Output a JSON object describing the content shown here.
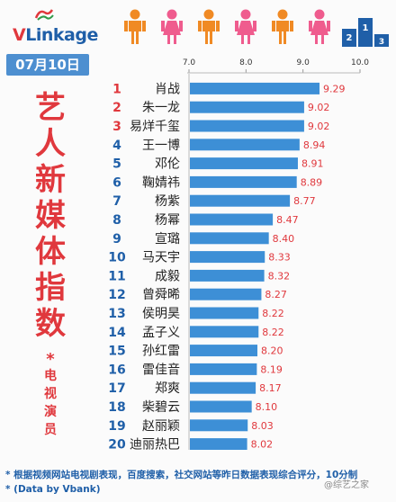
{
  "logo": {
    "text_v": "V",
    "text_link": "Link",
    "text_age": "age"
  },
  "date": "07月10日",
  "side_title": [
    "艺",
    "人",
    "新",
    "媒",
    "体",
    "指",
    "数"
  ],
  "side_star": "*",
  "side_sub": [
    "电",
    "视",
    "演",
    "员"
  ],
  "colors": {
    "bar": "#3d8fd6",
    "rank": "#1f5fa8",
    "rank_top": "#e0383d",
    "value": "#e0383d",
    "figure_orange": "#f08a24",
    "figure_pink": "#ef5c8e",
    "podium": "#1f5fa8"
  },
  "footer": {
    "line1": "* 根据视频网站电视剧表现，百度搜索，社交网站等昨日数据表现综合评分，10分制",
    "line2": "* (Data by Vbank)"
  },
  "watermark": "@综艺之家",
  "chart_data": {
    "type": "bar",
    "orientation": "horizontal",
    "xlim": [
      7.0,
      10.0
    ],
    "ticks": [
      "7.0",
      "8.0",
      "9.0",
      "10.0"
    ],
    "rows": [
      {
        "rank": "1",
        "name": "肖战",
        "value": 9.29
      },
      {
        "rank": "2",
        "name": "朱一龙",
        "value": 9.02
      },
      {
        "rank": "3",
        "name": "易烊千玺",
        "value": 9.02
      },
      {
        "rank": "4",
        "name": "王一博",
        "value": 8.94
      },
      {
        "rank": "5",
        "name": "邓伦",
        "value": 8.91
      },
      {
        "rank": "6",
        "name": "鞠婧祎",
        "value": 8.89
      },
      {
        "rank": "7",
        "name": "杨紫",
        "value": 8.77
      },
      {
        "rank": "8",
        "name": "杨幂",
        "value": 8.47
      },
      {
        "rank": "9",
        "name": "宣璐",
        "value": 8.4
      },
      {
        "rank": "10",
        "name": "马天宇",
        "value": 8.33
      },
      {
        "rank": "11",
        "name": "成毅",
        "value": 8.32
      },
      {
        "rank": "12",
        "name": "曾舜晞",
        "value": 8.27
      },
      {
        "rank": "13",
        "name": "侯明昊",
        "value": 8.22
      },
      {
        "rank": "14",
        "name": "孟子义",
        "value": 8.22
      },
      {
        "rank": "15",
        "name": "孙红雷",
        "value": 8.2
      },
      {
        "rank": "16",
        "name": "雷佳音",
        "value": 8.19
      },
      {
        "rank": "17",
        "name": "郑爽",
        "value": 8.17
      },
      {
        "rank": "18",
        "name": "柴碧云",
        "value": 8.1
      },
      {
        "rank": "19",
        "name": "赵丽颖",
        "value": 8.03
      },
      {
        "rank": "20",
        "name": "迪丽热巴",
        "value": 8.02
      }
    ]
  }
}
